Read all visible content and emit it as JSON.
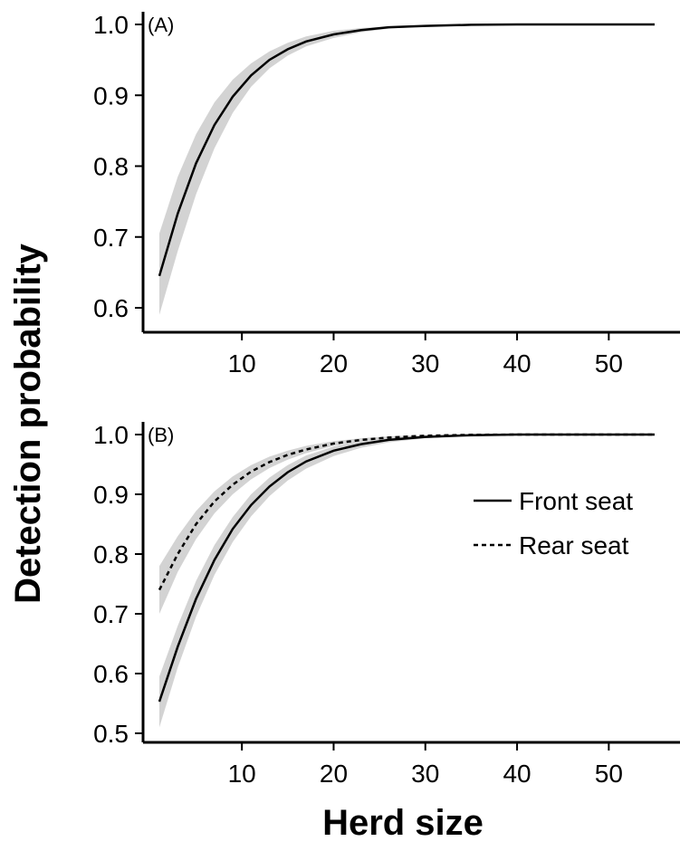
{
  "colors": {
    "band": "#d3d3d3",
    "line": "#000000",
    "background": "#ffffff"
  },
  "ylabel": "Detection probability",
  "xlabel": "Herd size",
  "chart_data": [
    {
      "type": "line",
      "panel_label": "(A)",
      "xlim": [
        1,
        55
      ],
      "ylim": [
        0.58,
        1.0
      ],
      "x_ticks": [
        10,
        20,
        30,
        40,
        50
      ],
      "y_ticks": [
        0.6,
        0.7,
        0.8,
        0.9,
        1.0
      ],
      "legend": [],
      "series": [
        {
          "style": "solid",
          "x": [
            1,
            3,
            5,
            7,
            9,
            11,
            13,
            15,
            17,
            20,
            23,
            26,
            30,
            35,
            40,
            45,
            50,
            55
          ],
          "y": [
            0.645,
            0.733,
            0.804,
            0.858,
            0.898,
            0.928,
            0.95,
            0.965,
            0.976,
            0.986,
            0.992,
            0.996,
            0.998,
            0.9995,
            1.0,
            1.0,
            1.0,
            1.0
          ],
          "ci_lower": [
            0.59,
            0.68,
            0.76,
            0.825,
            0.875,
            0.912,
            0.938,
            0.956,
            0.969,
            0.981,
            0.989,
            0.994,
            0.997,
            0.999,
            1.0,
            1.0,
            1.0,
            1.0
          ],
          "ci_upper": [
            0.705,
            0.785,
            0.845,
            0.89,
            0.922,
            0.945,
            0.962,
            0.974,
            0.983,
            0.991,
            0.995,
            0.997,
            0.999,
            1.0,
            1.0,
            1.0,
            1.0,
            1.0
          ]
        }
      ]
    },
    {
      "type": "line",
      "panel_label": "(B)",
      "xlim": [
        1,
        55
      ],
      "ylim": [
        0.5,
        1.0
      ],
      "x_ticks": [
        10,
        20,
        30,
        40,
        50
      ],
      "y_ticks": [
        0.5,
        0.6,
        0.7,
        0.8,
        0.9,
        1.0
      ],
      "legend": [
        {
          "label": "Front seat",
          "style": "solid"
        },
        {
          "label": "Rear seat",
          "style": "dashed"
        }
      ],
      "series": [
        {
          "name": "Front seat",
          "style": "solid",
          "x": [
            1,
            3,
            5,
            7,
            9,
            11,
            13,
            15,
            17,
            20,
            23,
            26,
            30,
            35,
            40,
            45,
            50,
            55
          ],
          "y": [
            0.553,
            0.645,
            0.725,
            0.79,
            0.842,
            0.882,
            0.913,
            0.937,
            0.955,
            0.973,
            0.984,
            0.991,
            0.996,
            0.999,
            1.0,
            1.0,
            1.0,
            1.0
          ],
          "ci_lower": [
            0.51,
            0.61,
            0.695,
            0.765,
            0.82,
            0.863,
            0.897,
            0.923,
            0.943,
            0.964,
            0.978,
            0.987,
            0.994,
            0.998,
            1.0,
            1.0,
            1.0,
            1.0
          ],
          "ci_upper": [
            0.595,
            0.68,
            0.755,
            0.815,
            0.862,
            0.9,
            0.928,
            0.949,
            0.965,
            0.98,
            0.989,
            0.994,
            0.998,
            0.9995,
            1.0,
            1.0,
            1.0,
            1.0
          ]
        },
        {
          "name": "Rear seat",
          "style": "dashed",
          "x": [
            1,
            3,
            5,
            7,
            9,
            11,
            13,
            15,
            17,
            20,
            23,
            26,
            30,
            35,
            40,
            45,
            50,
            55
          ],
          "y": [
            0.74,
            0.8,
            0.85,
            0.888,
            0.916,
            0.938,
            0.954,
            0.966,
            0.975,
            0.985,
            0.991,
            0.995,
            0.998,
            0.9995,
            1.0,
            1.0,
            1.0,
            1.0
          ],
          "ci_lower": [
            0.7,
            0.77,
            0.825,
            0.868,
            0.9,
            0.925,
            0.944,
            0.958,
            0.969,
            0.981,
            0.988,
            0.993,
            0.997,
            0.999,
            1.0,
            1.0,
            1.0,
            1.0
          ],
          "ci_upper": [
            0.78,
            0.83,
            0.872,
            0.905,
            0.93,
            0.949,
            0.963,
            0.973,
            0.981,
            0.989,
            0.994,
            0.997,
            0.999,
            1.0,
            1.0,
            1.0,
            1.0,
            1.0
          ]
        }
      ]
    }
  ]
}
